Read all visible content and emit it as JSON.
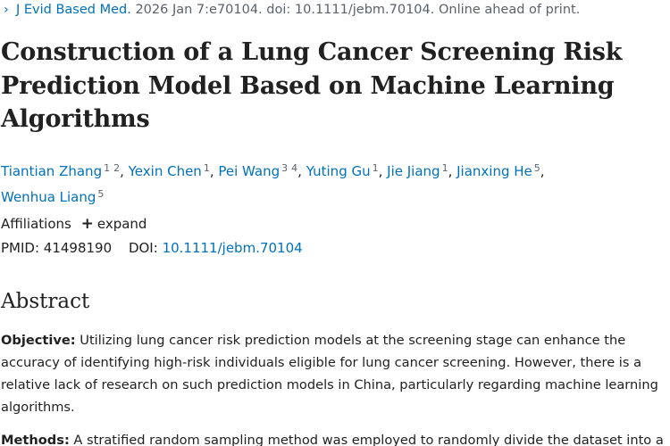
{
  "citation": {
    "chevron": "›",
    "journal": "J Evid Based Med.",
    "details": " 2026 Jan 7:e70104. doi: 10.1111/jebm.70104. Online ahead of print."
  },
  "title": "Construction of a Lung Cancer Screening Risk Prediction Model Based on Machine Learning Algorithms",
  "authors": [
    {
      "name": "Tiantian Zhang",
      "refs": [
        "1",
        "2"
      ]
    },
    {
      "name": "Yexin Chen",
      "refs": [
        "1"
      ]
    },
    {
      "name": "Pei Wang",
      "refs": [
        "3",
        "4"
      ]
    },
    {
      "name": "Yuting Gu",
      "refs": [
        "1"
      ]
    },
    {
      "name": "Jie Jiang",
      "refs": [
        "1"
      ]
    },
    {
      "name": "Jianxing He",
      "refs": [
        "5"
      ]
    },
    {
      "name": "Wenhua Liang",
      "refs": [
        "5"
      ]
    }
  ],
  "affiliations": {
    "label": "Affiliations",
    "expand_icon": "+",
    "expand_label": "expand"
  },
  "identifiers": {
    "pmid_label": "PMID:",
    "pmid": "41498190",
    "doi_label": "DOI:",
    "doi": "10.1111/jebm.70104"
  },
  "abstract": {
    "heading": "Abstract",
    "objective_label": "Objective:",
    "objective_text": " Utilizing lung cancer risk prediction models at the screening stage can enhance the accuracy of identifying high-risk individuals eligible for lung cancer screening. However, there is a relative lack of research on such prediction models in China, particularly regarding machine learning algorithms.",
    "methods_label": "Methods:",
    "methods_text": " A stratified random sampling method was employed to randomly divide the dataset into a"
  }
}
